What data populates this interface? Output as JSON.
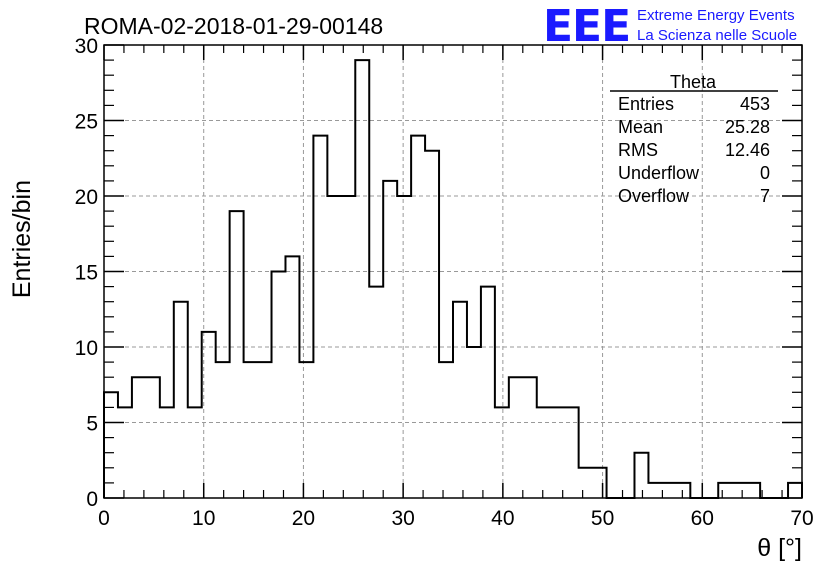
{
  "chart_data": {
    "type": "bar",
    "title": "ROMA-02-2018-01-29-00148",
    "xlabel": "θ [°]",
    "ylabel": "Entries/bin",
    "xlim": [
      0,
      70
    ],
    "ylim": [
      0,
      30
    ],
    "x_ticks": [
      "0",
      "10",
      "20",
      "30",
      "40",
      "50",
      "60",
      "70"
    ],
    "y_ticks": [
      "0",
      "5",
      "10",
      "15",
      "20",
      "25",
      "30"
    ],
    "grid": true,
    "bin_width": 1.4,
    "bin_edges_start": 0,
    "values": [
      7,
      6,
      8,
      8,
      6,
      13,
      6,
      11,
      9,
      19,
      9,
      9,
      15,
      16,
      9,
      24,
      20,
      20,
      29,
      14,
      21,
      20,
      24,
      23,
      9,
      13,
      10,
      14,
      6,
      8,
      8,
      6,
      6,
      6,
      2,
      2,
      0,
      0,
      3,
      1,
      1,
      1,
      0,
      0,
      1,
      1,
      1,
      0,
      0,
      1
    ],
    "stats_box": {
      "title": "Theta",
      "rows": [
        {
          "label": "Entries",
          "value": "453"
        },
        {
          "label": "Mean",
          "value": "25.28"
        },
        {
          "label": "RMS",
          "value": "12.46"
        },
        {
          "label": "Underflow",
          "value": "0"
        },
        {
          "label": "Overflow",
          "value": "7"
        }
      ]
    }
  },
  "logo": {
    "mark": "EEE",
    "line1": "Extreme Energy Events",
    "line2": "La Scienza nelle Scuole"
  }
}
